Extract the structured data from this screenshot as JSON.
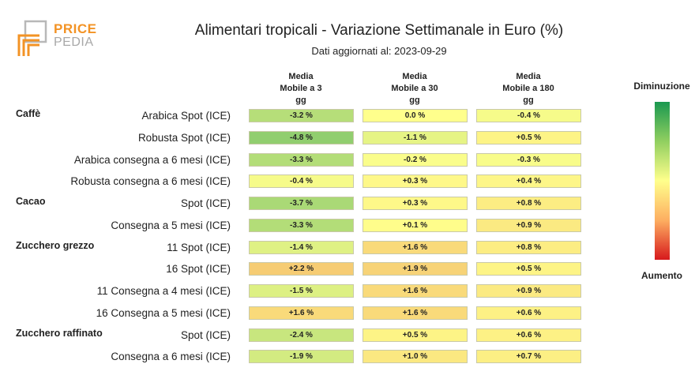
{
  "logo": {
    "line1": "PRICE",
    "line2": "PEDIA"
  },
  "chart_data": {
    "type": "table",
    "title": "Alimentari tropicali - Variazione Settimanale in Euro (%)",
    "subtitle": "Dati aggiornati al: 2023-09-29",
    "columns": [
      "Media Mobile a 3 gg",
      "Media Mobile a 30 gg",
      "Media Mobile a 180 gg"
    ],
    "columns_lines": [
      [
        "Media",
        "Mobile a 3",
        "gg"
      ],
      [
        "Media",
        "Mobile a 30",
        "gg"
      ],
      [
        "Media",
        "Mobile a 180",
        "gg"
      ]
    ],
    "rows": [
      {
        "group": "Caffè",
        "label": "Arabica Spot (ICE)",
        "values": [
          -3.2,
          0.0,
          -0.4
        ],
        "texts": [
          "-3.2 %",
          "0.0 %",
          "-0.4 %"
        ]
      },
      {
        "group": "",
        "label": "Robusta Spot (ICE)",
        "values": [
          -4.8,
          -1.1,
          0.5
        ],
        "texts": [
          "-4.8 %",
          "-1.1 %",
          "+0.5 %"
        ]
      },
      {
        "group": "",
        "label": "Arabica consegna a 6 mesi (ICE)",
        "values": [
          -3.3,
          -0.2,
          -0.3
        ],
        "texts": [
          "-3.3 %",
          "-0.2 %",
          "-0.3 %"
        ]
      },
      {
        "group": "",
        "label": "Robusta consegna a 6 mesi (ICE)",
        "values": [
          -0.4,
          0.3,
          0.4
        ],
        "texts": [
          "-0.4 %",
          "+0.3 %",
          "+0.4 %"
        ]
      },
      {
        "group": "Cacao",
        "label": "Spot (ICE)",
        "values": [
          -3.7,
          0.3,
          0.8
        ],
        "texts": [
          "-3.7 %",
          "+0.3 %",
          "+0.8 %"
        ]
      },
      {
        "group": "",
        "label": "Consegna a 5 mesi (ICE)",
        "values": [
          -3.3,
          0.1,
          0.9
        ],
        "texts": [
          "-3.3 %",
          "+0.1 %",
          "+0.9 %"
        ]
      },
      {
        "group": "Zucchero grezzo",
        "label": "11 Spot (ICE)",
        "values": [
          -1.4,
          1.6,
          0.8
        ],
        "texts": [
          "-1.4 %",
          "+1.6 %",
          "+0.8 %"
        ]
      },
      {
        "group": "",
        "label": "16 Spot (ICE)",
        "values": [
          2.2,
          1.9,
          0.5
        ],
        "texts": [
          "+2.2 %",
          "+1.9 %",
          "+0.5 %"
        ]
      },
      {
        "group": "",
        "label": "11 Consegna a 4 mesi (ICE)",
        "values": [
          -1.5,
          1.6,
          0.9
        ],
        "texts": [
          "-1.5 %",
          "+1.6 %",
          "+0.9 %"
        ]
      },
      {
        "group": "",
        "label": "16 Consegna a 5 mesi (ICE)",
        "values": [
          1.6,
          1.6,
          0.6
        ],
        "texts": [
          "+1.6 %",
          "+1.6 %",
          "+0.6 %"
        ]
      },
      {
        "group": "Zucchero raffinato",
        "label": "Spot (ICE)",
        "values": [
          -2.4,
          0.5,
          0.6
        ],
        "texts": [
          "-2.4 %",
          "+0.5 %",
          "+0.6 %"
        ]
      },
      {
        "group": "",
        "label": "Consegna a 6 mesi (ICE)",
        "values": [
          -1.9,
          1.0,
          0.7
        ],
        "texts": [
          "-1.9 %",
          "+1.0 %",
          "+0.7 %"
        ]
      }
    ],
    "legend": {
      "top_label": "Diminuzione",
      "bottom_label": "Aumento"
    },
    "colors": {
      "decrease": "#1a9850",
      "neutral": "#ffff8c",
      "increase": "#d7191c"
    }
  }
}
